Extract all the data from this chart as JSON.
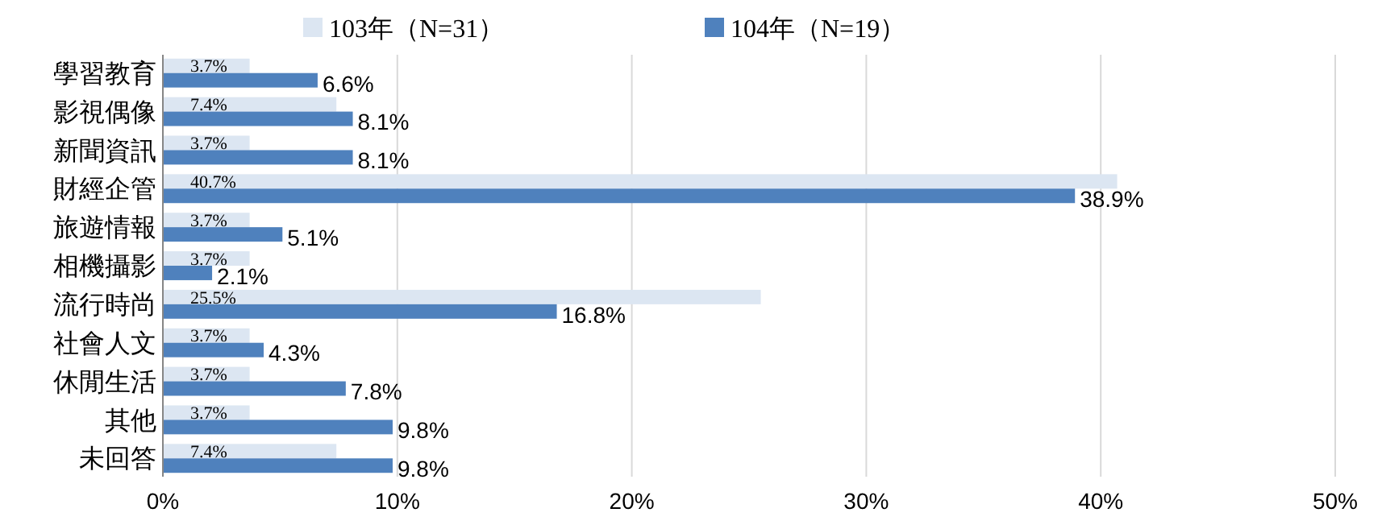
{
  "chart_data": {
    "type": "bar",
    "orientation": "horizontal",
    "categories": [
      "學習教育",
      "影視偶像",
      "新聞資訊",
      "財經企管",
      "旅遊情報",
      "相機攝影",
      "流行時尚",
      "社會人文",
      "休閒生活",
      "其他",
      "未回答"
    ],
    "series": [
      {
        "name": "103年（N=31）",
        "color": "#dce6f2",
        "values": [
          3.7,
          7.4,
          3.7,
          40.7,
          3.7,
          3.7,
          25.5,
          3.7,
          3.7,
          3.7,
          7.4
        ],
        "value_labels": [
          "3.7%",
          "7.4%",
          "3.7%",
          "40.7%",
          "3.7%",
          "3.7%",
          "25.5%",
          "3.7%",
          "3.7%",
          "3.7%",
          "7.4%"
        ]
      },
      {
        "name": "104年（N=19）",
        "color": "#4f81bd",
        "values": [
          6.6,
          8.1,
          8.1,
          38.9,
          5.1,
          2.1,
          16.8,
          4.3,
          7.8,
          9.8,
          9.8
        ],
        "value_labels": [
          "6.6%",
          "8.1%",
          "8.1%",
          "38.9%",
          "5.1%",
          "2.1%",
          "16.8%",
          "4.3%",
          "7.8%",
          "9.8%",
          "9.8%"
        ]
      }
    ],
    "xlim": [
      0,
      50
    ],
    "xticks": [
      {
        "value": 0,
        "label": "0%"
      },
      {
        "value": 10,
        "label": "10%"
      },
      {
        "value": 20,
        "label": "20%"
      },
      {
        "value": 30,
        "label": "30%"
      },
      {
        "value": 40,
        "label": "40%"
      },
      {
        "value": 50,
        "label": "50%"
      }
    ],
    "grid": "x",
    "legend": "top"
  }
}
